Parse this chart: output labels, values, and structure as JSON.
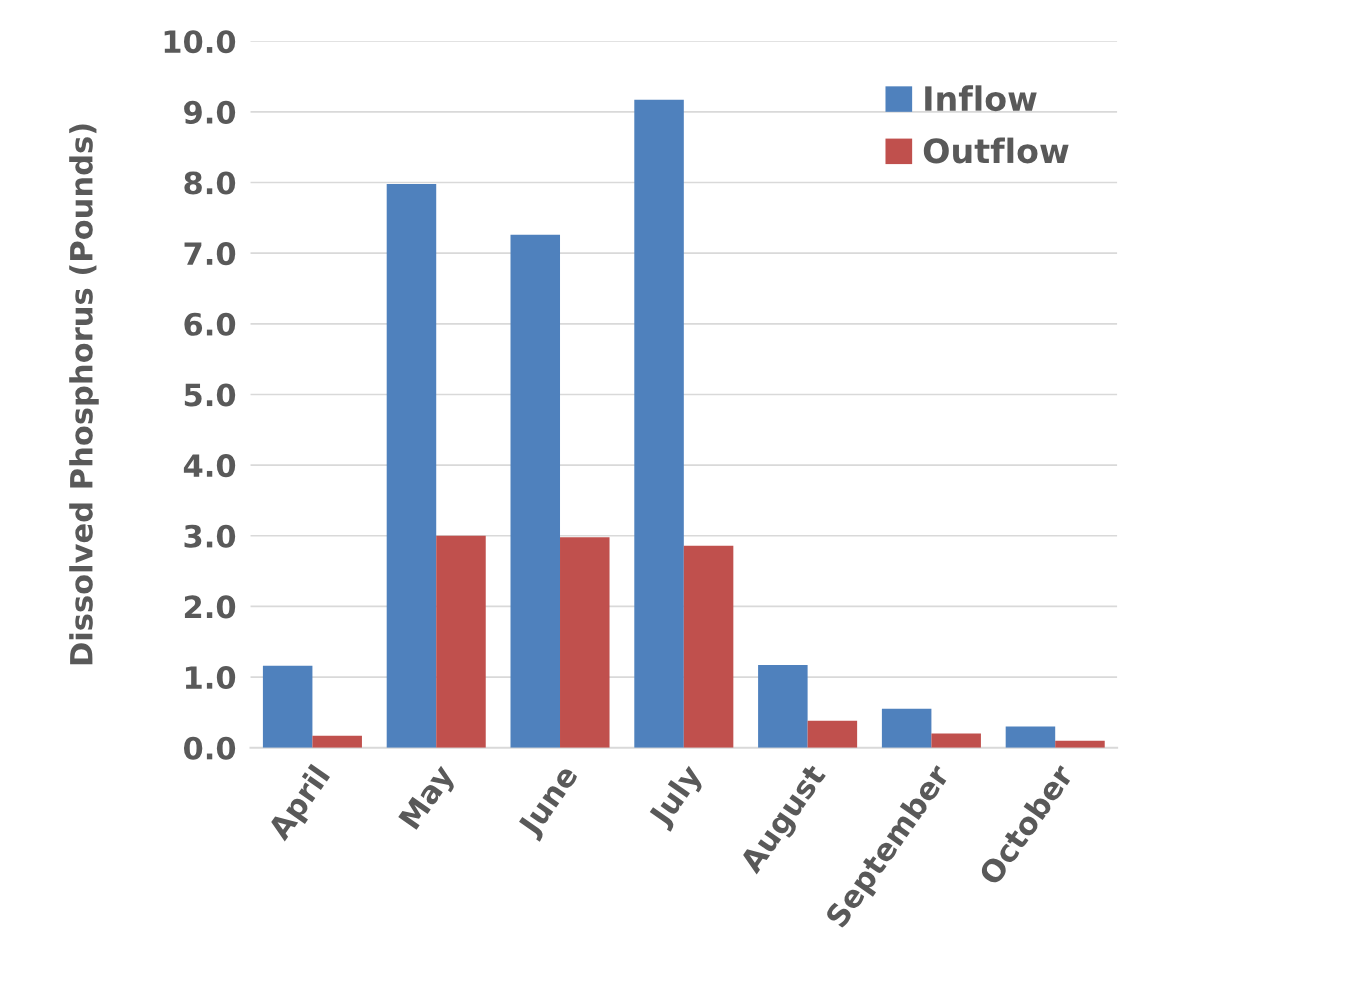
{
  "chart_data": {
    "type": "bar",
    "ylabel": "Dissolved Phosphorus (Pounds)",
    "categories": [
      "April",
      "May",
      "June",
      "July",
      "August",
      "September",
      "October"
    ],
    "series": [
      {
        "name": "Inflow",
        "color": "#4f81bd",
        "values": [
          1.16,
          7.98,
          7.26,
          9.17,
          1.17,
          0.55,
          0.3
        ]
      },
      {
        "name": "Outflow",
        "color": "#c0504d",
        "values": [
          0.17,
          3.0,
          2.98,
          2.86,
          0.38,
          0.2,
          0.1
        ]
      }
    ],
    "ylim": [
      0,
      10
    ],
    "yticks": [
      {
        "value": 0,
        "label": "0.0"
      },
      {
        "value": 1,
        "label": "1.0"
      },
      {
        "value": 2,
        "label": "2.0"
      },
      {
        "value": 3,
        "label": "3.0"
      },
      {
        "value": 4,
        "label": "4.0"
      },
      {
        "value": 5,
        "label": "5.0"
      },
      {
        "value": 6,
        "label": "6.0"
      },
      {
        "value": 7,
        "label": "7.0"
      },
      {
        "value": 8,
        "label": "8.0"
      },
      {
        "value": 9,
        "label": "9.0"
      },
      {
        "value": 10,
        "label": "10.0"
      }
    ],
    "grid": "y",
    "legend": "top right"
  }
}
